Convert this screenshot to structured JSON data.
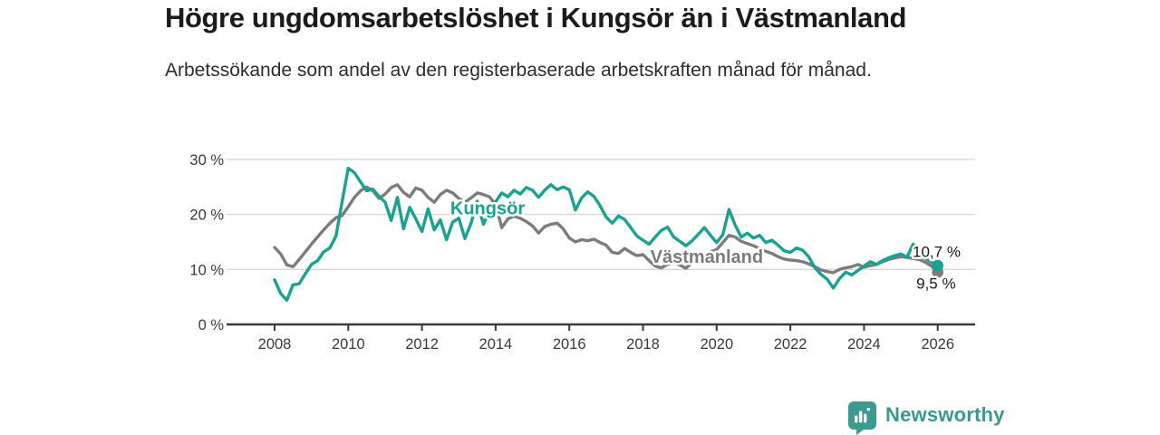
{
  "page": {
    "title": "Högre ungdomsarbetslöshet i Kungsör än i Västmanland",
    "subtitle": "Arbetssökande som andel av den registerbaserade arbetskraften månad för månad."
  },
  "footer": {
    "brand": "Newsworthy",
    "logo_icon": "bar-chart-pin-icon",
    "brand_color": "#38998f"
  },
  "colors": {
    "kungsor_line": "#17a391",
    "vastmanland_line": "#7c7c7c",
    "gridline": "#d8d8d8",
    "axis": "#3a3a3a",
    "tick_label": "#3a3a3a",
    "end_label_text": "#1a1a1a"
  },
  "chart_data": {
    "type": "line",
    "title": "Högre ungdomsarbetslöshet i Kungsör än i Västmanland",
    "subtitle": "Arbetssökande som andel av den registerbaserade arbetskraften månad för månad.",
    "unit": "%",
    "grid": "horizontal",
    "legend_position": "inline-labels",
    "x_start_year": 2008,
    "x_step_years": 0.1666667,
    "x_end_year": 2026,
    "xlim": [
      2006.7,
      2027.0
    ],
    "ylim": [
      0,
      31
    ],
    "x_ticks": [
      {
        "value": 2008,
        "label": "2008"
      },
      {
        "value": 2010,
        "label": "2010"
      },
      {
        "value": 2012,
        "label": "2012"
      },
      {
        "value": 2014,
        "label": "2014"
      },
      {
        "value": 2016,
        "label": "2016"
      },
      {
        "value": 2018,
        "label": "2018"
      },
      {
        "value": 2020,
        "label": "2020"
      },
      {
        "value": 2022,
        "label": "2022"
      },
      {
        "value": 2024,
        "label": "2024"
      },
      {
        "value": 2026,
        "label": "2026"
      }
    ],
    "y_ticks": [
      {
        "value": 0,
        "label": "0 %"
      },
      {
        "value": 10,
        "label": "10 %"
      },
      {
        "value": 20,
        "label": "20 %"
      },
      {
        "value": 30,
        "label": "30 %"
      }
    ],
    "series": [
      {
        "name": "Kungsör",
        "slug": "kungsor",
        "color": "#17a391",
        "end_label": "10,7 %",
        "end_value": 10.7,
        "end_dot": true,
        "values": [
          8.1,
          5.6,
          4.4,
          7.2,
          7.4,
          9.2,
          10.9,
          11.6,
          13.2,
          13.9,
          16.1,
          22.3,
          28.4,
          27.6,
          25.9,
          24.3,
          24.6,
          23.3,
          22.2,
          18.9,
          23.1,
          17.4,
          21.3,
          19.2,
          16.9,
          21.0,
          17.2,
          19.0,
          15.4,
          18.6,
          19.3,
          15.6,
          18.4,
          22.4,
          18.2,
          20.6,
          22.3,
          23.9,
          23.2,
          24.4,
          23.7,
          24.9,
          24.4,
          23.1,
          24.4,
          25.4,
          24.5,
          25.0,
          24.5,
          20.8,
          23.0,
          24.1,
          23.3,
          21.6,
          19.5,
          18.4,
          19.7,
          19.1,
          17.6,
          16.1,
          15.3,
          14.6,
          15.9,
          17.1,
          17.7,
          15.9,
          15.1,
          14.3,
          15.2,
          16.4,
          17.6,
          16.2,
          14.9,
          16.3,
          20.9,
          18.1,
          15.9,
          16.6,
          15.7,
          16.2,
          14.9,
          15.3,
          14.4,
          13.4,
          13.1,
          13.9,
          13.5,
          12.3,
          10.3,
          9.1,
          8.2,
          6.6,
          8.3,
          9.5,
          9.0,
          9.8,
          10.6,
          11.4,
          10.9,
          11.6,
          12.1,
          12.5,
          12.8,
          12.2,
          14.6,
          12.4,
          12.0,
          11.3,
          10.7
        ]
      },
      {
        "name": "Västmanland",
        "slug": "vastmanland",
        "color": "#7c7c7c",
        "end_label": "9,5 %",
        "end_value": 9.5,
        "end_dot": true,
        "values": [
          14.0,
          12.8,
          10.8,
          10.5,
          11.8,
          13.2,
          14.6,
          15.9,
          17.2,
          18.4,
          19.4,
          19.8,
          21.4,
          23.1,
          24.3,
          25.0,
          24.3,
          22.9,
          23.7,
          24.9,
          25.4,
          24.0,
          23.2,
          24.8,
          24.4,
          23.1,
          22.2,
          23.6,
          24.4,
          23.9,
          22.9,
          22.2,
          23.0,
          23.9,
          23.6,
          23.2,
          21.8,
          17.6,
          19.2,
          19.7,
          19.3,
          18.7,
          17.9,
          16.6,
          17.8,
          18.2,
          18.4,
          17.4,
          15.7,
          15.0,
          15.4,
          15.2,
          15.5,
          14.9,
          14.4,
          13.1,
          12.9,
          13.8,
          13.1,
          12.5,
          12.7,
          11.6,
          10.6,
          10.3,
          10.9,
          11.3,
          10.8,
          10.2,
          11.3,
          12.1,
          12.7,
          13.2,
          13.6,
          14.9,
          16.2,
          15.9,
          15.1,
          14.7,
          14.3,
          13.8,
          13.3,
          12.9,
          12.3,
          11.9,
          11.7,
          11.6,
          11.4,
          11.0,
          10.5,
          9.9,
          9.6,
          9.4,
          10.0,
          10.3,
          10.5,
          10.9,
          10.4,
          10.7,
          10.9,
          11.4,
          11.8,
          12.1,
          12.3,
          12.2,
          12.0,
          11.8,
          11.3,
          10.6,
          9.5
        ]
      }
    ],
    "annotations": [
      {
        "id": "kungsor-series-label",
        "text": "Kungsör",
        "x_year": 2012.77,
        "y_value": 20.0,
        "color": "#17a391",
        "bold": true,
        "halo": true,
        "font_size": 20
      },
      {
        "id": "vastmanland-series-label",
        "text": "Västmanland",
        "x_year": 2018.2,
        "y_value": 11.2,
        "color": "#7c7c7c",
        "bold": true,
        "halo": true,
        "font_size": 20
      },
      {
        "id": "kungsor-end-value",
        "text": "10,7 %",
        "x_year": 2025.32,
        "y_value": 12.3,
        "color": "#1a1a1a",
        "bold": false,
        "halo": true,
        "font_size": 17
      },
      {
        "id": "vastmanland-end-value",
        "text": "9,5 %",
        "x_year": 2025.42,
        "y_value": 6.5,
        "color": "#1a1a1a",
        "bold": false,
        "halo": true,
        "font_size": 17
      }
    ]
  }
}
